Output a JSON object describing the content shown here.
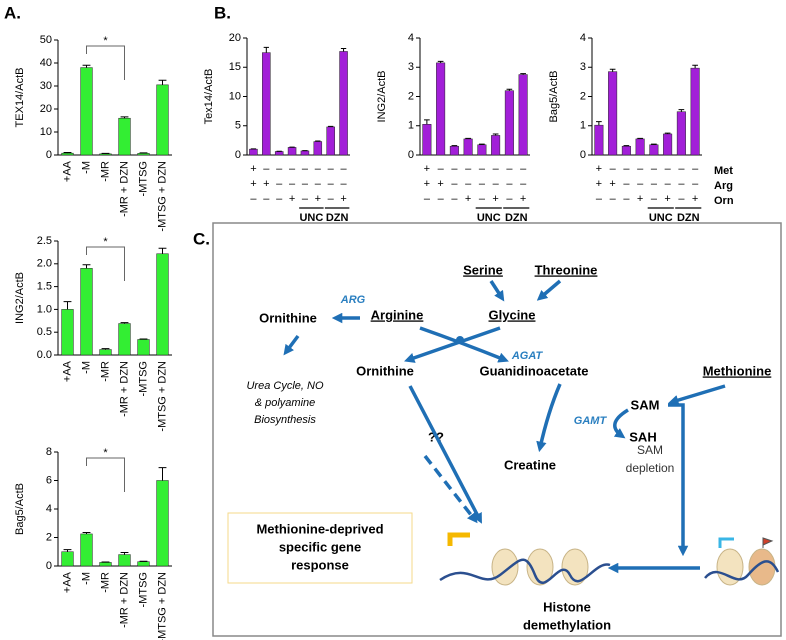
{
  "panel_labels": {
    "a": "A.",
    "b": "B.",
    "c": "C."
  },
  "chart_data": [
    {
      "type": "bar",
      "ylabel": "TEX14/ActB",
      "categories": [
        "+AA",
        "-M",
        "-MR",
        "-MR + DZN",
        "-MTSG",
        "-MTSG + DZN"
      ],
      "values": [
        0.8,
        38,
        0.5,
        16,
        0.7,
        30.5
      ],
      "errors": [
        0.3,
        1,
        0.2,
        0.6,
        0.2,
        2
      ],
      "color": "#33ee33",
      "ylim": [
        0,
        50
      ],
      "yticks": [
        0,
        10,
        20,
        30,
        40,
        50
      ],
      "annotations": [
        {
          "text": "*",
          "between": [
            "-M",
            "-MR + DZN"
          ]
        }
      ]
    },
    {
      "type": "bar",
      "ylabel": "ING2/ActB",
      "categories": [
        "+AA",
        "-M",
        "-MR",
        "-MR + DZN",
        "-MTSG",
        "-MTSG + DZN"
      ],
      "values": [
        1.0,
        1.9,
        0.12,
        0.69,
        0.34,
        2.22
      ],
      "errors": [
        0.17,
        0.08,
        0.02,
        0.02,
        0.01,
        0.12
      ],
      "color": "#33ee33",
      "ylim": [
        0,
        2.5
      ],
      "yticks": [
        {
          "value": 0,
          "label": "0.0"
        },
        0.5,
        {
          "value": 1,
          "label": "1.0"
        },
        1.5,
        {
          "value": 2,
          "label": "2.0"
        },
        2.5
      ],
      "annotations": [
        {
          "text": "*",
          "between": [
            "-M",
            "-MR + DZN"
          ]
        }
      ]
    },
    {
      "type": "bar",
      "ylabel": "Bag5/ActB",
      "categories": [
        "+AA",
        "-M",
        "-MR",
        "-MR + DZN",
        "-MTSG",
        "-MTSG + DZN"
      ],
      "values": [
        1.0,
        2.25,
        0.25,
        0.8,
        0.3,
        6.0
      ],
      "errors": [
        0.15,
        0.1,
        0.03,
        0.15,
        0.03,
        0.9
      ],
      "color": "#33ee33",
      "ylim": [
        0,
        8
      ],
      "yticks": [
        0,
        2,
        4,
        6,
        8
      ],
      "annotations": [
        {
          "text": "*",
          "between": [
            "-M",
            "-MR + DZN"
          ]
        }
      ]
    },
    {
      "type": "bar",
      "ylabel": "Tex14/ActB",
      "categories": [
        null,
        null,
        null,
        null,
        null,
        null,
        null,
        null
      ],
      "values": [
        1.0,
        17.5,
        0.6,
        1.3,
        0.7,
        2.3,
        4.8,
        17.7
      ],
      "errors": [
        0.05,
        0.9,
        0.05,
        0.05,
        0.05,
        0.1,
        0.1,
        0.5
      ],
      "color": "#a21fd8",
      "ylim": [
        0,
        20
      ],
      "yticks": [
        0,
        5,
        10,
        15,
        20
      ]
    },
    {
      "type": "bar",
      "ylabel": "ING2/ActB",
      "categories": [
        null,
        null,
        null,
        null,
        null,
        null,
        null,
        null
      ],
      "values": [
        1.05,
        3.15,
        0.3,
        0.55,
        0.35,
        0.67,
        2.2,
        2.75
      ],
      "errors": [
        0.15,
        0.05,
        0.02,
        0.02,
        0.02,
        0.05,
        0.05,
        0.03
      ],
      "color": "#a21fd8",
      "ylim": [
        0,
        4
      ],
      "yticks": [
        0,
        1,
        2,
        3,
        4
      ]
    },
    {
      "type": "bar",
      "ylabel": "Bag5/ActB",
      "categories": [
        null,
        null,
        null,
        null,
        null,
        null,
        null,
        null
      ],
      "values": [
        1.02,
        2.85,
        0.3,
        0.55,
        0.35,
        0.72,
        1.48,
        2.97
      ],
      "errors": [
        0.12,
        0.08,
        0.02,
        0.02,
        0.02,
        0.03,
        0.07,
        0.1
      ],
      "color": "#a21fd8",
      "ylim": [
        0,
        4
      ],
      "yticks": [
        0,
        1,
        2,
        3,
        4
      ]
    }
  ],
  "conditions": {
    "rows": [
      {
        "name": "Met",
        "signs": [
          "+",
          "–",
          "–",
          "–",
          "–",
          "–",
          "–",
          "–"
        ]
      },
      {
        "name": "Arg",
        "signs": [
          "+",
          "+",
          "–",
          "–",
          "–",
          "–",
          "–",
          "–"
        ]
      },
      {
        "name": "Orn",
        "signs": [
          "–",
          "–",
          "–",
          "+",
          "–",
          "+",
          "–",
          "+"
        ]
      }
    ],
    "group_labels": [
      "UNC",
      "DZN"
    ]
  },
  "diagram": {
    "serine": "Serine",
    "threonine": "Threonine",
    "glycine": "Glycine",
    "arginine": "Arginine",
    "ornithine_top": "Ornithine",
    "arg": "ARG",
    "agat": "AGAT",
    "urea": [
      "Urea Cycle, NO",
      "& polyamine",
      "Biosynthesis"
    ],
    "ornithine": "Ornithine",
    "guanidinoacetate": "Guanidinoacetate",
    "methionine": "Methionine",
    "sam": "SAM",
    "gamt": "GAMT",
    "sah": "SAH",
    "creatine": "Creatine",
    "unknown": "??",
    "sam_depletion": [
      "SAM",
      "depletion"
    ],
    "response": [
      "Methionine-deprived",
      "specific gene",
      "response"
    ],
    "histone": [
      "Histone",
      "demethylation"
    ]
  }
}
